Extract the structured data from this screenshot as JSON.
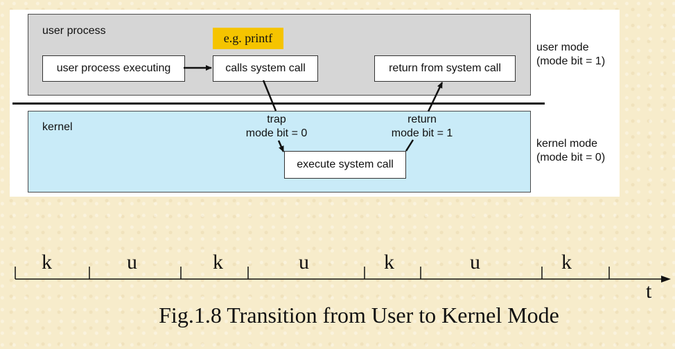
{
  "diagram": {
    "user_region_label": "user process",
    "kernel_region_label": "kernel",
    "example_note": "e.g. printf",
    "boxes": {
      "user_process_executing": "user process executing",
      "calls_system_call": "calls system call",
      "return_from_system_call": "return from system call",
      "execute_system_call": "execute system call"
    },
    "trap_label": [
      "trap",
      "mode bit = 0"
    ],
    "return_label": [
      "return",
      "mode bit = 1"
    ],
    "user_mode_label": [
      "user mode",
      "(mode bit = 1)"
    ],
    "kernel_mode_label": [
      "kernel mode",
      "(mode bit = 0)"
    ]
  },
  "timeline": {
    "segments": [
      "k",
      "u",
      "k",
      "u",
      "k",
      "u",
      "k"
    ],
    "axis_label": "t"
  },
  "caption": "Fig.1.8 Transition from User to Kernel Mode"
}
